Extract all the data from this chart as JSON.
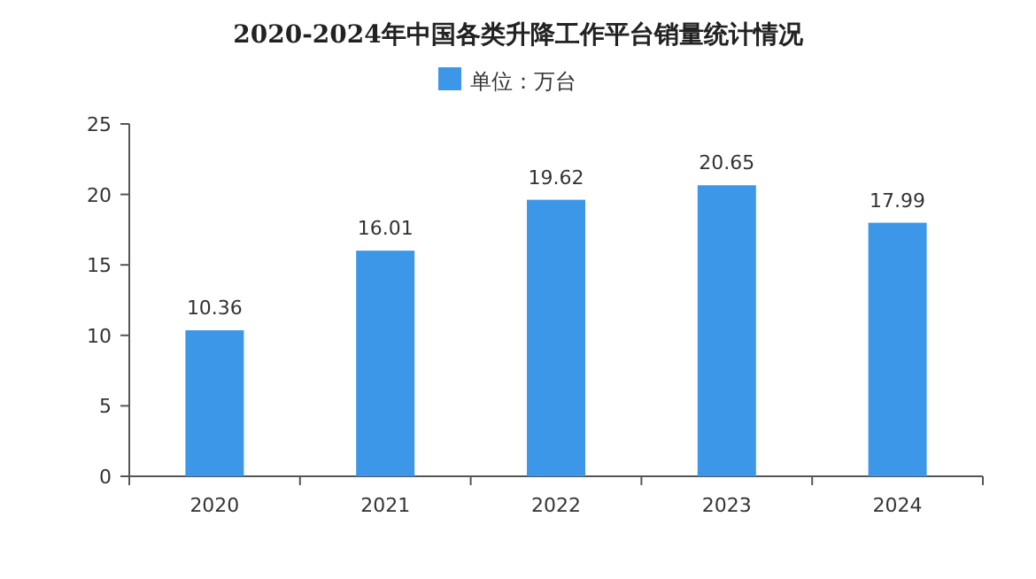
{
  "chart_data": {
    "type": "bar",
    "title": "2020-2024年中国各类升降工作平台销量统计情况",
    "categories": [
      "2020",
      "2021",
      "2022",
      "2023",
      "2024"
    ],
    "series": [
      {
        "name": "单位：万台",
        "color": "#3d97e8",
        "values": [
          10.36,
          16.01,
          19.62,
          20.65,
          17.99
        ]
      }
    ],
    "ylim": [
      0,
      25
    ],
    "yticks": [
      0,
      5,
      10,
      15,
      20,
      25
    ],
    "data_labels": true,
    "legend": "top",
    "grid": false
  }
}
